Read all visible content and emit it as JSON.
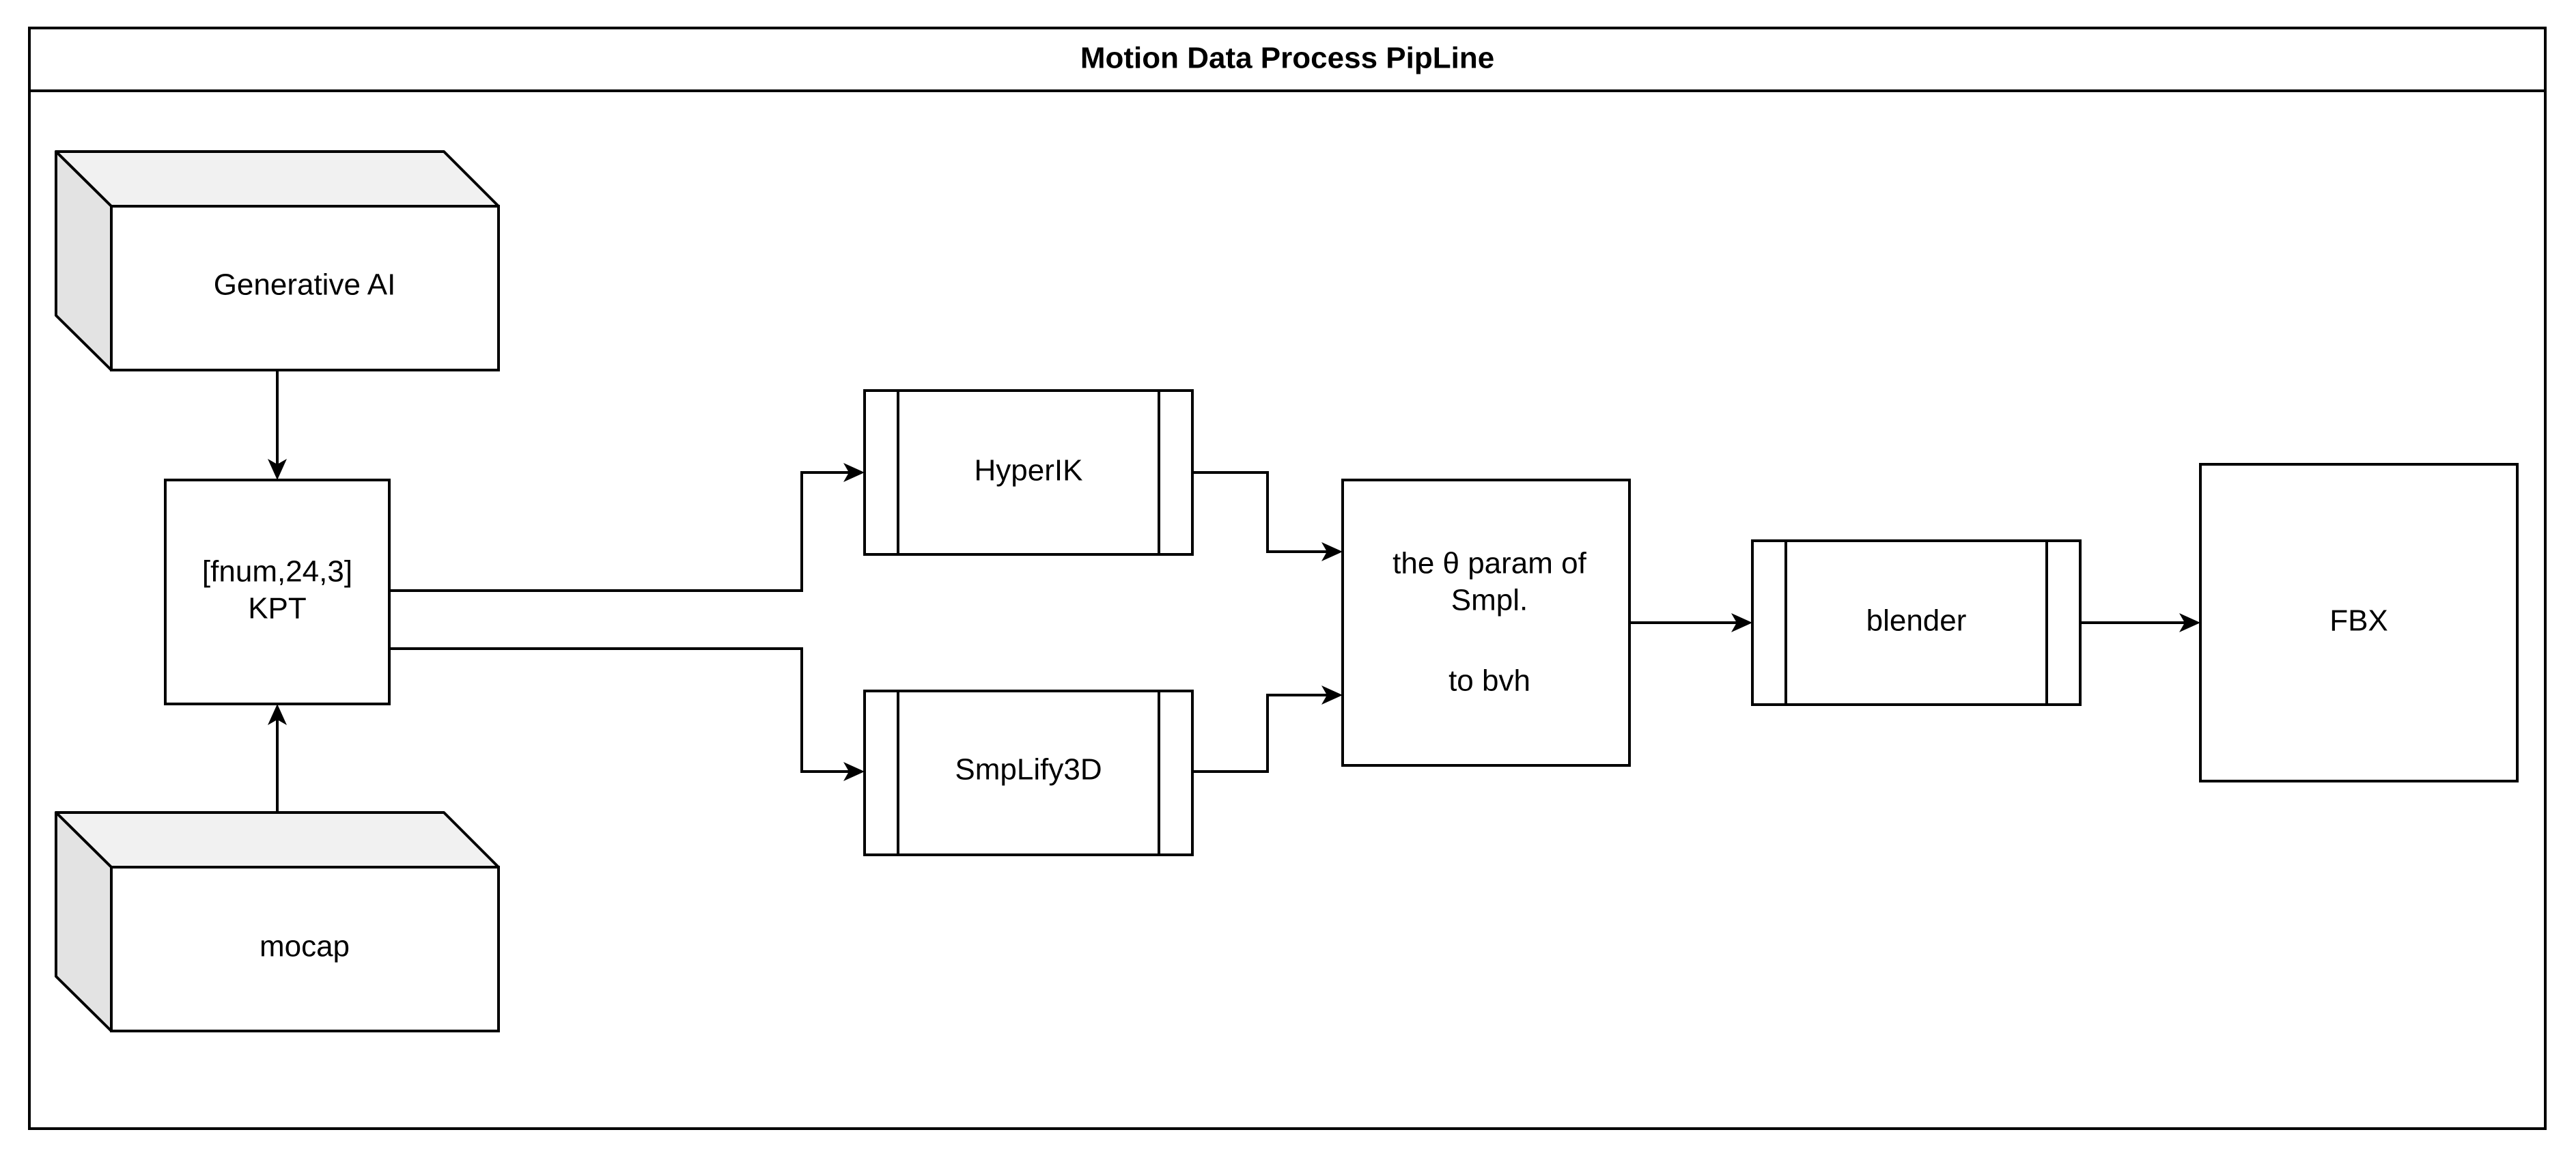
{
  "diagram": {
    "title": "Motion Data Process PipLine",
    "nodes": {
      "generative_ai": "Generative  AI",
      "mocap": "mocap",
      "kpt_line1": "[fnum,24,3]",
      "kpt_line2": "KPT",
      "hyperik": "HyperIK",
      "smplify3d": "SmpLify3D",
      "theta_line1": "the θ param of",
      "theta_line2": "Smpl.",
      "theta_line3": "to bvh",
      "blender": "blender",
      "fbx": "FBX"
    },
    "edges": [
      {
        "from": "Generative  AI",
        "to": "[fnum,24,3] KPT"
      },
      {
        "from": "mocap",
        "to": "[fnum,24,3] KPT"
      },
      {
        "from": "[fnum,24,3] KPT",
        "to": "HyperIK"
      },
      {
        "from": "[fnum,24,3] KPT",
        "to": "SmpLify3D"
      },
      {
        "from": "HyperIK",
        "to": "the θ param of Smpl. to bvh"
      },
      {
        "from": "SmpLify3D",
        "to": "the θ param of Smpl. to bvh"
      },
      {
        "from": "the θ param of Smpl. to bvh",
        "to": "blender"
      },
      {
        "from": "blender",
        "to": "FBX"
      }
    ]
  }
}
